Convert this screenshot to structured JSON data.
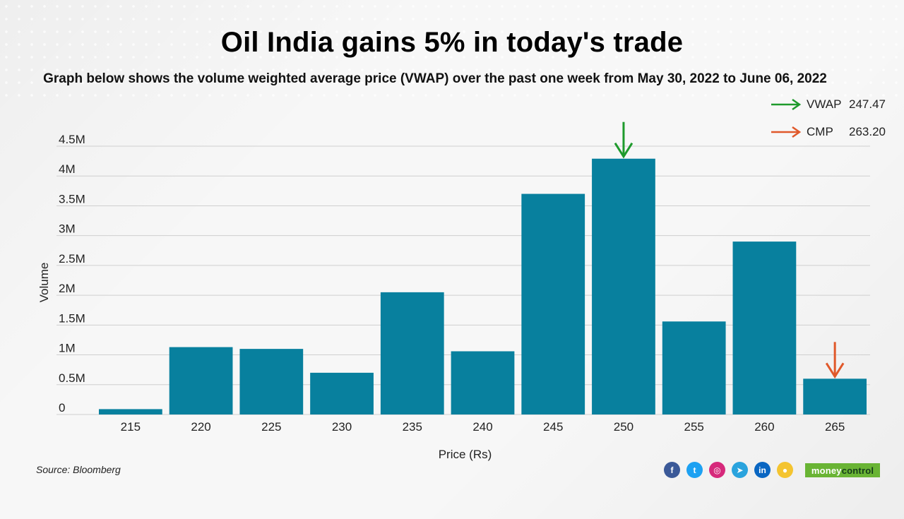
{
  "title": "Oil India gains 5% in today's trade",
  "subtitle": "Graph below shows the volume weighted average price (VWAP) over the past one week from May 30, 2022 to June 06, 2022",
  "legend": {
    "vwap": {
      "label": "VWAP",
      "value": "247.47",
      "color": "#1e9a2c"
    },
    "cmp": {
      "label": "CMP",
      "value": "263.20",
      "color": "#e0582a"
    }
  },
  "chart_data": {
    "type": "bar",
    "title": "Oil India gains 5% in today's trade",
    "xlabel": "Price (Rs)",
    "ylabel": "Volume",
    "categories": [
      "215",
      "220",
      "225",
      "230",
      "235",
      "240",
      "245",
      "250",
      "255",
      "260",
      "265"
    ],
    "values": [
      90000,
      1130000,
      1100000,
      700000,
      2050000,
      1060000,
      3700000,
      4290000,
      1560000,
      2900000,
      600000
    ],
    "ylim": [
      0,
      4500000
    ],
    "yticks": [
      0,
      500000,
      1000000,
      1500000,
      2000000,
      2500000,
      3000000,
      3500000,
      4000000,
      4500000
    ],
    "ytick_labels": [
      "0",
      "0.5M",
      "1M",
      "1.5M",
      "2M",
      "2.5M",
      "3M",
      "3.5M",
      "4M",
      "4.5M"
    ],
    "bar_color": "#08809e",
    "grid": true,
    "annotations": [
      {
        "category": "250",
        "marker": "VWAP",
        "color": "#1e9a2c"
      },
      {
        "category": "265",
        "marker": "CMP",
        "color": "#e0582a"
      }
    ]
  },
  "footer": {
    "source": "Source: Bloomberg",
    "brand_part1": "money",
    "brand_part2": "control",
    "socials": [
      {
        "icon": "facebook-icon",
        "glyph": "f",
        "color": "#3b5998"
      },
      {
        "icon": "twitter-icon",
        "glyph": "t",
        "color": "#1da1f2"
      },
      {
        "icon": "instagram-icon",
        "glyph": "◎",
        "color": "#d6297b"
      },
      {
        "icon": "telegram-icon",
        "glyph": "➤",
        "color": "#2aa3dd"
      },
      {
        "icon": "linkedin-icon",
        "glyph": "in",
        "color": "#0a66c2"
      },
      {
        "icon": "koo-icon",
        "glyph": "●",
        "color": "#f4c430"
      }
    ]
  }
}
